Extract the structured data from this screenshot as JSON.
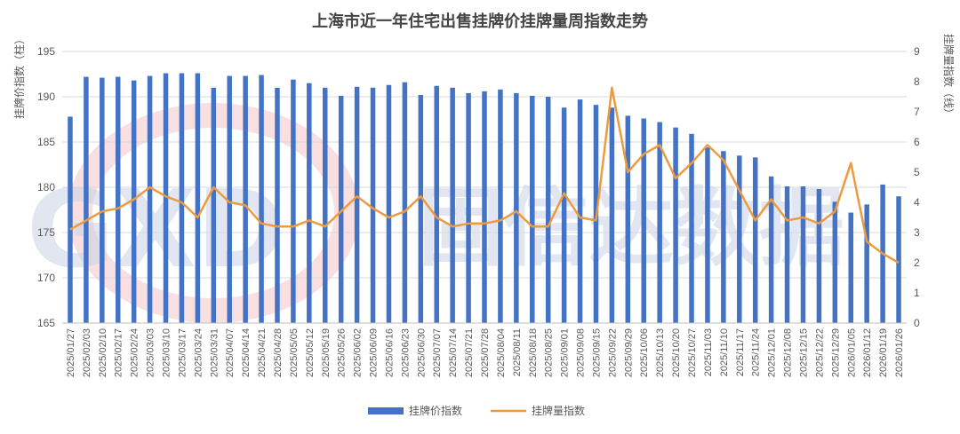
{
  "chart_data": {
    "type": "bar+line",
    "title": "上海市近一年住宅出售挂牌价挂牌量周指数走势",
    "ylabel_left": "挂牌价指数（柱）",
    "ylabel_right": "挂牌量指数（线）",
    "ylim_left": [
      165,
      195
    ],
    "yticks_left": [
      165,
      170,
      175,
      180,
      185,
      190,
      195
    ],
    "ylim_right": [
      0,
      9
    ],
    "yticks_right": [
      0,
      1,
      2,
      3,
      4,
      5,
      6,
      7,
      8,
      9
    ],
    "grid": true,
    "legend_position": "bottom-center",
    "categories": [
      "2025/01/27",
      "2025/02/03",
      "2025/02/10",
      "2025/02/17",
      "2025/02/24",
      "2025/03/03",
      "2025/03/10",
      "2025/03/17",
      "2025/03/24",
      "2025/03/31",
      "2025/04/07",
      "2025/04/14",
      "2025/04/21",
      "2025/04/28",
      "2025/05/05",
      "2025/05/12",
      "2025/05/19",
      "2025/05/26",
      "2025/06/02",
      "2025/06/09",
      "2025/06/16",
      "2025/06/23",
      "2025/06/30",
      "2025/07/07",
      "2025/07/14",
      "2025/07/21",
      "2025/07/28",
      "2025/08/04",
      "2025/08/11",
      "2025/08/18",
      "2025/08/25",
      "2025/09/01",
      "2025/09/08",
      "2025/09/15",
      "2025/09/22",
      "2025/09/29",
      "2025/10/06",
      "2025/10/13",
      "2025/10/20",
      "2025/10/27",
      "2025/11/03",
      "2025/11/10",
      "2025/11/17",
      "2025/11/24",
      "2025/12/01",
      "2025/12/08",
      "2025/12/15",
      "2025/12/22",
      "2025/12/29",
      "2026/01/05",
      "2026/01/12",
      "2026/01/19",
      "2026/01/26"
    ],
    "series": [
      {
        "name": "挂牌价指数",
        "type": "bar",
        "axis": "left",
        "color": "#4472C4",
        "values": [
          187.8,
          192.2,
          192.1,
          192.2,
          191.8,
          192.3,
          192.6,
          192.6,
          192.6,
          191.0,
          192.3,
          192.3,
          192.4,
          191.0,
          191.9,
          191.5,
          191.0,
          190.1,
          191.1,
          191.0,
          191.3,
          191.6,
          190.2,
          191.2,
          191.0,
          190.4,
          190.6,
          190.8,
          190.4,
          190.1,
          190.0,
          188.8,
          189.7,
          189.1,
          188.8,
          187.9,
          187.6,
          187.2,
          186.6,
          185.9,
          184.4,
          184.0,
          183.5,
          183.3,
          181.2,
          180.1,
          180.1,
          179.8,
          178.4,
          177.2,
          178.1,
          180.3,
          179.0
        ]
      },
      {
        "name": "挂牌量指数",
        "type": "line",
        "axis": "right",
        "color": "#ED9B40",
        "values": [
          3.1,
          3.4,
          3.7,
          3.8,
          4.1,
          4.5,
          4.2,
          4.0,
          3.5,
          4.5,
          4.0,
          3.9,
          3.3,
          3.2,
          3.2,
          3.4,
          3.2,
          3.7,
          4.2,
          3.8,
          3.5,
          3.7,
          4.2,
          3.5,
          3.2,
          3.3,
          3.3,
          3.4,
          3.7,
          3.2,
          3.2,
          4.3,
          3.5,
          3.4,
          7.8,
          5.0,
          5.6,
          5.9,
          4.8,
          5.3,
          5.9,
          5.4,
          4.4,
          3.4,
          4.1,
          3.4,
          3.5,
          3.3,
          3.7,
          5.3,
          2.7,
          2.3,
          2.0
        ]
      }
    ]
  },
  "watermark": {
    "text_latin": "GXD",
    "text_cjk": "固信达数据",
    "color": "#c9d3e6",
    "accent": "#f2b8b8"
  }
}
